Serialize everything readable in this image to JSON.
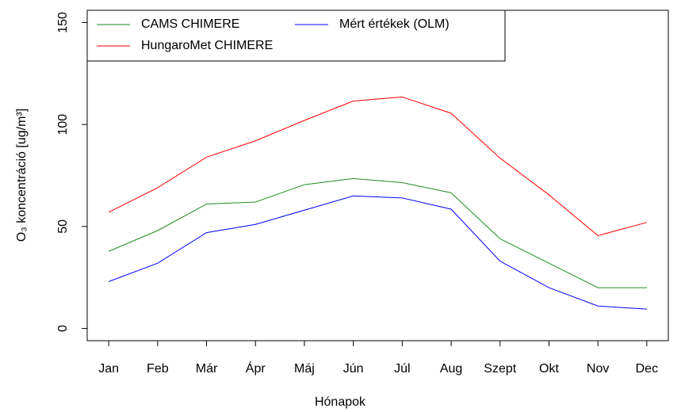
{
  "chart_data": {
    "type": "line",
    "xlabel": "Hónapok",
    "ylabel": "O₃ koncentráció [ug/m³]",
    "categories": [
      "Jan",
      "Feb",
      "Már",
      "Ápr",
      "Máj",
      "Jún",
      "Júl",
      "Aug",
      "Szept",
      "Okt",
      "Nov",
      "Dec"
    ],
    "series": [
      {
        "name": "CAMS CHIMERE",
        "color": "#228b22",
        "values": [
          37.8,
          48,
          61,
          62,
          70.5,
          73.5,
          71.5,
          66.5,
          44,
          32,
          20,
          20
        ]
      },
      {
        "name": "HungaroMet CHIMERE",
        "color": "#ff0000",
        "values": [
          57,
          69,
          84,
          92,
          102,
          111.5,
          113.5,
          105.5,
          83.5,
          65.5,
          45.5,
          52
        ]
      },
      {
        "name": "Mért értékek (OLM)",
        "color": "#0000ff",
        "values": [
          23,
          32,
          47,
          51,
          58,
          65,
          64,
          58.5,
          33,
          20,
          11,
          9.5
        ]
      }
    ],
    "ylim": [
      -6,
      156
    ],
    "yticks": [
      0,
      50,
      100,
      150
    ],
    "legend": "topleft",
    "grid": false
  }
}
